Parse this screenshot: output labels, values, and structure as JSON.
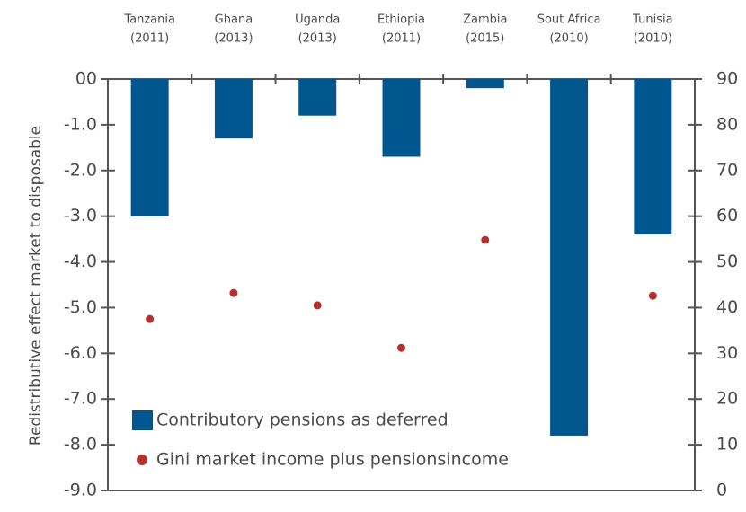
{
  "chart_data": {
    "type": "bar",
    "y_axis_label": "Redistributive effect market to disposable",
    "categories": [
      [
        "Tanzania",
        "(2011)"
      ],
      [
        "Ghana",
        "(2013)"
      ],
      [
        "Uganda",
        "(2013)"
      ],
      [
        "Ethiopia",
        "(2011)"
      ],
      [
        "Zambia",
        "(2015)"
      ],
      [
        "Sout Africa",
        "(2010)"
      ],
      [
        "Tunisia",
        "(2010)"
      ]
    ],
    "series": [
      {
        "name": "Contributory pensions as deferred",
        "type": "bar",
        "color": "#00568f",
        "axis": "y",
        "values": [
          -3.0,
          -1.3,
          -0.8,
          -1.7,
          -0.2,
          -7.8,
          -3.4
        ]
      },
      {
        "name": "Gini market income plus pensionsincome",
        "type": "scatter",
        "color": "#b5312f",
        "axis": "y2",
        "values": [
          37.5,
          43.2,
          40.5,
          31.2,
          54.8,
          null,
          42.6
        ]
      }
    ],
    "ylim": [
      -9,
      0
    ],
    "yticks": [
      {
        "value": 0,
        "label": "00"
      },
      {
        "value": -1,
        "label": "-1.0"
      },
      {
        "value": -2,
        "label": "-2.0"
      },
      {
        "value": -3,
        "label": "-3.0"
      },
      {
        "value": -4,
        "label": "-4.0"
      },
      {
        "value": -5,
        "label": "-5.0"
      },
      {
        "value": -6,
        "label": "-6.0"
      },
      {
        "value": -7,
        "label": "-7.0"
      },
      {
        "value": -8,
        "label": "-8.0"
      },
      {
        "value": -9,
        "label": "-9.0"
      }
    ],
    "y2lim": [
      0,
      90
    ],
    "y2ticks": [
      0,
      10,
      20,
      30,
      40,
      50,
      60,
      70,
      80,
      90
    ],
    "legend": "lower left",
    "grid": false
  }
}
